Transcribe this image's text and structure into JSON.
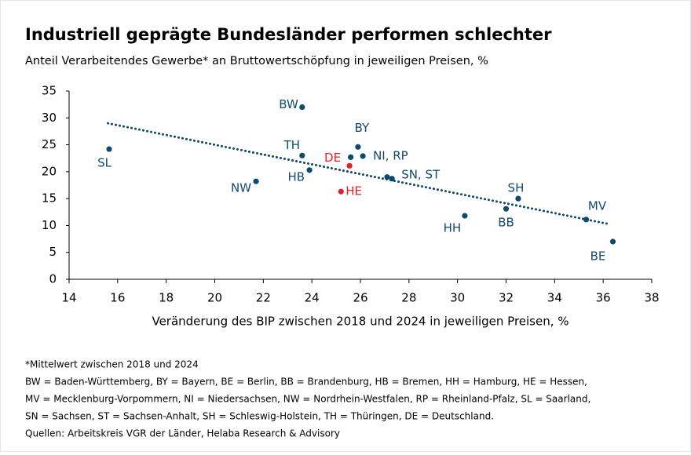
{
  "chart_data": {
    "type": "scatter",
    "title": "Industriell geprägte Bundesländer performen schlechter",
    "subtitle": "Anteil Verarbeitendes Gewerbe* an Bruttowertschöpfung in jeweiligen Preisen, %",
    "x_label": "Veränderung des BIP zwischen 2018 und 2024 in jeweiligen Preisen, %",
    "xlim": [
      14,
      38
    ],
    "xticks": [
      14,
      16,
      18,
      20,
      22,
      24,
      26,
      28,
      30,
      32,
      34,
      36,
      38
    ],
    "ylim": [
      0,
      35
    ],
    "yticks": [
      0,
      5,
      10,
      15,
      20,
      25,
      30,
      35
    ],
    "grid": false,
    "points": [
      {
        "label": "SL",
        "x": 15.65,
        "y": 24.2,
        "color": "#0f4a6e"
      },
      {
        "label": "BW",
        "x": 23.6,
        "y": 32.0,
        "color": "#0f4a6e"
      },
      {
        "label": "TH",
        "x": 23.6,
        "y": 23.0,
        "color": "#0f4a6e"
      },
      {
        "label": "HB",
        "x": 23.9,
        "y": 20.3,
        "color": "#0f4a6e"
      },
      {
        "label": "NW",
        "x": 21.7,
        "y": 18.2,
        "color": "#0f4a6e"
      },
      {
        "label": "BY",
        "x": 25.9,
        "y": 24.6,
        "color": "#0f4a6e"
      },
      {
        "label": null,
        "x": 25.6,
        "y": 22.7,
        "color": "#0f4a6e"
      },
      {
        "label": "NI, RP",
        "x": 26.1,
        "y": 22.9,
        "color": "#0f4a6e"
      },
      {
        "label": "DE",
        "x": 25.55,
        "y": 21.1,
        "color": "#e3202a"
      },
      {
        "label": "HE",
        "x": 25.2,
        "y": 16.3,
        "color": "#e3202a"
      },
      {
        "label": null,
        "x": 27.1,
        "y": 19.0,
        "color": "#0f4a6e"
      },
      {
        "label": "SN, ST",
        "x": 27.3,
        "y": 18.7,
        "color": "#0f4a6e"
      },
      {
        "label": "HH",
        "x": 30.3,
        "y": 11.8,
        "color": "#0f4a6e"
      },
      {
        "label": "BB",
        "x": 32.0,
        "y": 13.1,
        "color": "#0f4a6e"
      },
      {
        "label": "SH",
        "x": 32.5,
        "y": 15.0,
        "color": "#0f4a6e"
      },
      {
        "label": "MV",
        "x": 35.3,
        "y": 11.1,
        "color": "#0f4a6e"
      },
      {
        "label": "BE",
        "x": 36.4,
        "y": 7.0,
        "color": "#0f4a6e"
      }
    ],
    "trendline": {
      "x": [
        15.6,
        36.2
      ],
      "y": [
        29.0,
        10.3
      ],
      "color": "#0f4a6e"
    }
  },
  "notes": [
    "*Mittelwert zwischen 2018 und 2024",
    "BW = Baden-Württemberg, BY = Bayern, BE = Berlin, BB = Brandenburg, HB = Bremen, HH = Hamburg, HE = Hessen,",
    "MV = Mecklenburg-Vorpommern, NI = Niedersachsen, NW = Nordrhein-Westfalen, RP = Rheinland-Pfalz, SL = Saarland,",
    "SN = Sachsen, ST = Sachsen-Anhalt, SH = Schleswig-Holstein, TH = Thüringen, DE = Deutschland.",
    "Quellen: Arbeitskreis VGR der Länder, Helaba Research & Advisory"
  ]
}
